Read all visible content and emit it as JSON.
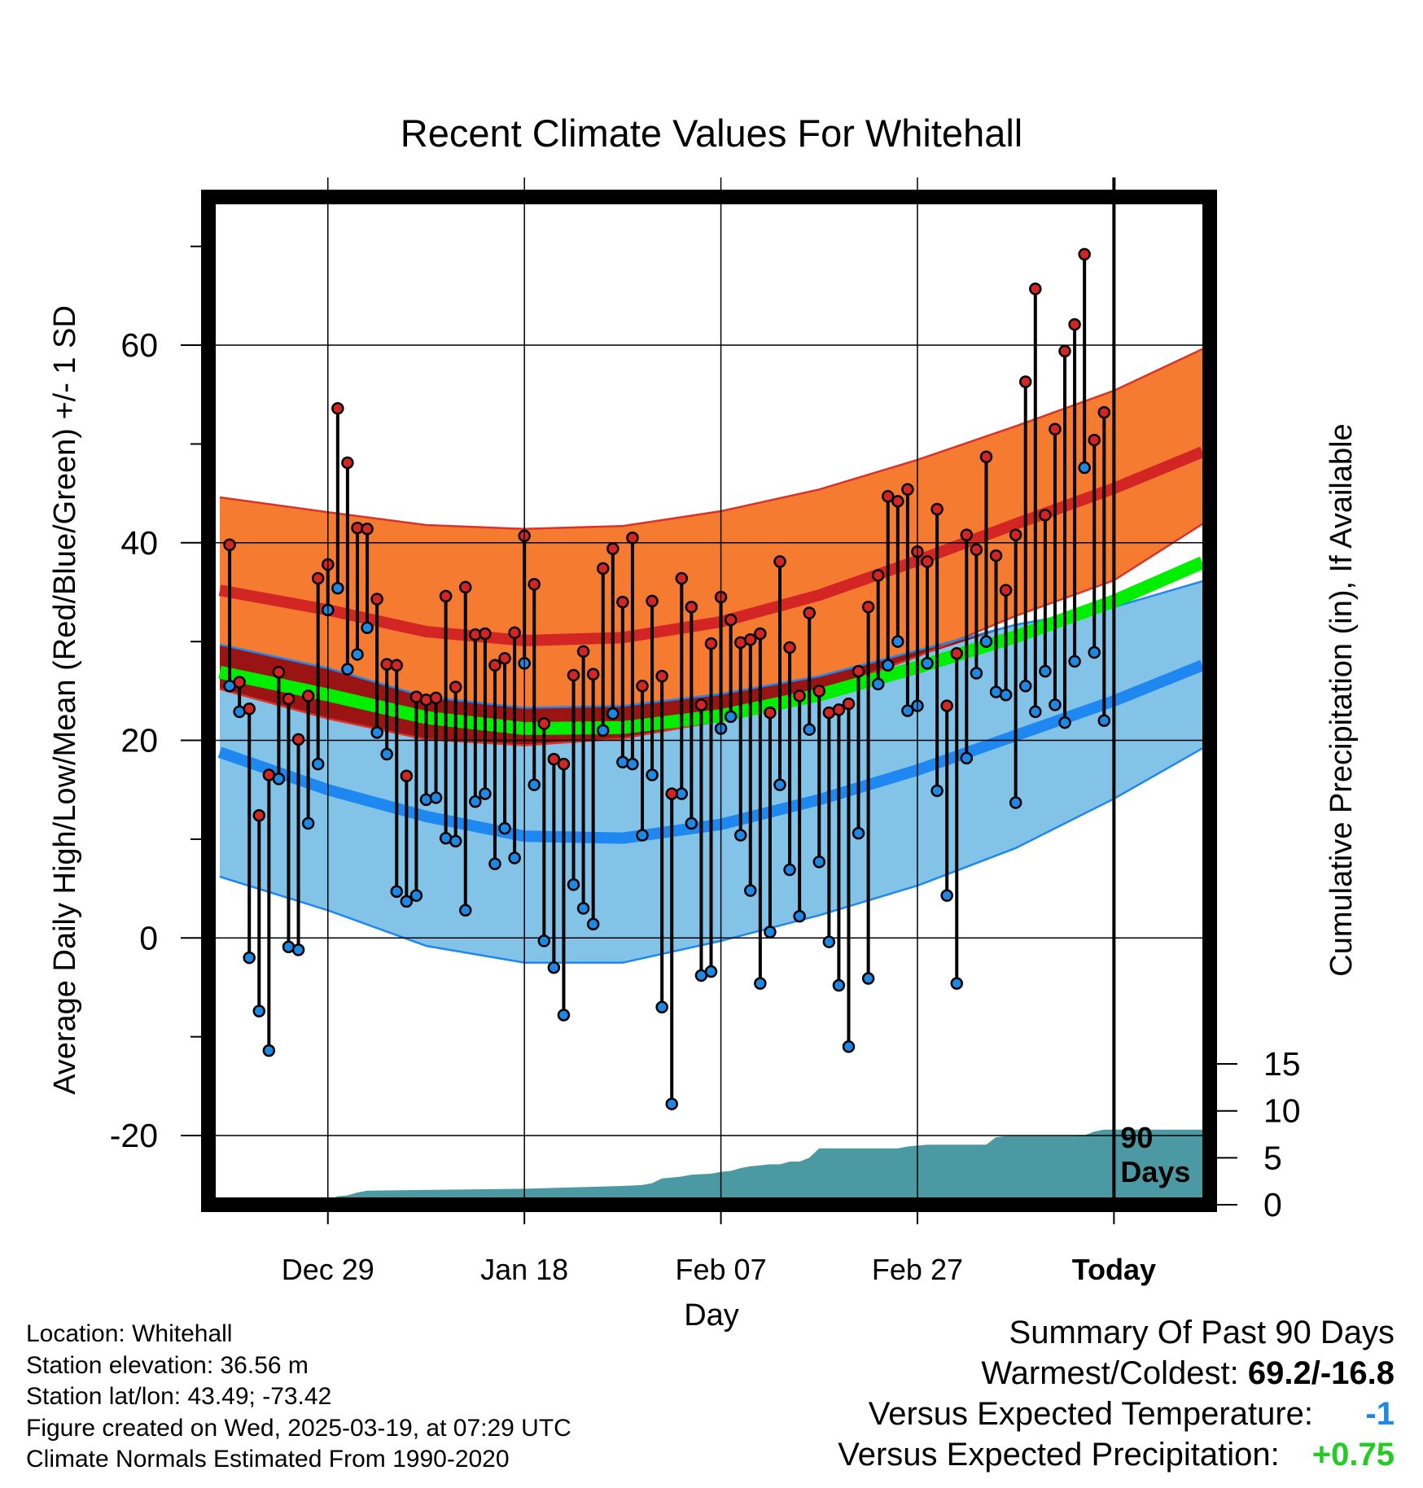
{
  "chart_data": {
    "type": "line",
    "title": "Recent Climate Values For Whitehall",
    "xlabel": "Day",
    "ylabel": "Average Daily High/Low/Mean (Red/Blue/Green) +/- 1 SD",
    "y2label": "Cumulative Precipitation (in), If Available",
    "ylim": [
      -27,
      75
    ],
    "y2lim": [
      0,
      20
    ],
    "yticks": [
      -20,
      0,
      20,
      40,
      60
    ],
    "y2ticks": [
      0,
      5,
      10,
      15
    ],
    "x_tick_labels": [
      "Dec 29",
      "Jan 18",
      "Feb 07",
      "Feb 27",
      "Today"
    ],
    "x_tick_days": [
      10,
      30,
      50,
      70,
      90
    ],
    "xlim": [
      -1,
      99
    ],
    "today_marker_label": [
      "90",
      "Days"
    ],
    "grid": true,
    "colors": {
      "high_band": "#f47b30",
      "high_band_edge": "#d9332a",
      "high_mean": "#d42525",
      "low_band": "#84c3e8",
      "low_band_edge": "#1e88f0",
      "low_mean": "#1e88f0",
      "mean_band": "#9a1414",
      "mean_line": "#00ee00",
      "precip": "#4b9aa3",
      "high_point": "#d42525",
      "low_point": "#1e88e5"
    },
    "normals": {
      "x": [
        -1,
        10,
        20,
        30,
        40,
        50,
        60,
        70,
        80,
        90,
        99
      ],
      "high_mean": [
        35.2,
        33.2,
        31.0,
        30.1,
        30.4,
        32.0,
        34.7,
        38.2,
        41.9,
        45.5,
        49.2
      ],
      "high_upper": [
        44.6,
        43.1,
        41.8,
        41.4,
        41.7,
        43.2,
        45.4,
        48.4,
        51.8,
        55.4,
        59.6
      ],
      "high_lower": [
        25.2,
        22.2,
        20.1,
        19.5,
        20.2,
        22.0,
        24.9,
        28.5,
        32.6,
        36.2,
        41.9
      ],
      "low_mean": [
        18.8,
        15.0,
        12.3,
        10.3,
        10.1,
        11.5,
        14.0,
        17.0,
        20.5,
        24.0,
        27.6
      ],
      "low_upper": [
        29.7,
        27.3,
        24.4,
        23.3,
        23.5,
        24.7,
        26.5,
        29.1,
        31.7,
        33.5,
        36.1
      ],
      "low_lower": [
        6.2,
        2.8,
        -0.8,
        -2.5,
        -2.5,
        -0.3,
        2.3,
        5.3,
        9.1,
        14.1,
        19.2
      ],
      "mean_line": [
        26.9,
        24.6,
        22.3,
        21.2,
        21.3,
        22.5,
        24.6,
        27.4,
        30.5,
        34.1,
        38.0
      ]
    },
    "series": [
      {
        "name": "High",
        "x": [
          0,
          1,
          2,
          3,
          4,
          5,
          6,
          7,
          8,
          9,
          10,
          11,
          12,
          13,
          14,
          15,
          16,
          17,
          18,
          19,
          20,
          21,
          22,
          23,
          24,
          25,
          26,
          27,
          28,
          29,
          30,
          31,
          32,
          33,
          34,
          35,
          36,
          37,
          38,
          39,
          40,
          41,
          42,
          43,
          44,
          45,
          46,
          47,
          48,
          49,
          50,
          51,
          52,
          53,
          54,
          55,
          56,
          57,
          58,
          59,
          60,
          61,
          62,
          63,
          64,
          65,
          66,
          67,
          68,
          69,
          70,
          71,
          72,
          73,
          74,
          75,
          76,
          77,
          78,
          79,
          80,
          81,
          82,
          83,
          84,
          85,
          86,
          87,
          88,
          89
        ],
        "values": [
          39.8,
          25.9,
          23.2,
          12.4,
          16.5,
          26.9,
          24.2,
          20.1,
          24.5,
          36.4,
          37.8,
          53.6,
          48.1,
          41.5,
          41.4,
          34.3,
          27.7,
          27.6,
          16.4,
          24.4,
          24.1,
          24.3,
          34.6,
          25.4,
          35.5,
          30.7,
          30.8,
          27.6,
          28.3,
          30.9,
          40.7,
          35.8,
          21.7,
          18.1,
          17.6,
          26.6,
          29.0,
          26.7,
          37.4,
          39.4,
          34.0,
          40.5,
          25.5,
          34.1,
          26.5,
          14.6,
          36.4,
          33.5,
          23.6,
          29.8,
          34.5,
          32.2,
          29.9,
          30.2,
          30.8,
          22.8,
          38.1,
          29.4,
          24.5,
          32.9,
          25.0,
          22.8,
          23.1,
          23.7,
          27.0,
          33.5,
          36.7,
          44.7,
          44.2,
          45.4,
          39.1,
          38.1,
          43.4,
          23.5,
          28.8,
          40.8,
          39.3,
          48.7,
          38.7,
          35.2,
          40.8,
          56.3,
          65.7,
          42.8,
          51.5,
          59.4,
          62.1,
          69.2,
          50.4,
          53.2
        ]
      },
      {
        "name": "Low",
        "x": [
          0,
          1,
          2,
          3,
          4,
          5,
          6,
          7,
          8,
          9,
          10,
          11,
          12,
          13,
          14,
          15,
          16,
          17,
          18,
          19,
          20,
          21,
          22,
          23,
          24,
          25,
          26,
          27,
          28,
          29,
          30,
          31,
          32,
          33,
          34,
          35,
          36,
          37,
          38,
          39,
          40,
          41,
          42,
          43,
          44,
          45,
          46,
          47,
          48,
          49,
          50,
          51,
          52,
          53,
          54,
          55,
          56,
          57,
          58,
          59,
          60,
          61,
          62,
          63,
          64,
          65,
          66,
          67,
          68,
          69,
          70,
          71,
          72,
          73,
          74,
          75,
          76,
          77,
          78,
          79,
          80,
          81,
          82,
          83,
          84,
          85,
          86,
          87,
          88,
          89
        ],
        "values": [
          25.5,
          22.9,
          -2.0,
          -7.4,
          -11.4,
          16.1,
          -0.9,
          -1.2,
          11.6,
          17.6,
          33.2,
          35.4,
          27.2,
          28.7,
          31.4,
          20.8,
          18.6,
          4.7,
          3.7,
          4.3,
          14.0,
          14.2,
          10.1,
          9.8,
          2.8,
          13.8,
          14.6,
          7.5,
          11.1,
          8.1,
          27.8,
          15.5,
          -0.3,
          -3.0,
          -7.8,
          5.4,
          3.0,
          1.4,
          21.0,
          22.7,
          17.8,
          17.6,
          10.4,
          16.5,
          -7.0,
          -16.8,
          14.6,
          11.6,
          -3.8,
          -3.4,
          21.2,
          22.4,
          10.4,
          4.8,
          -4.6,
          0.6,
          15.5,
          6.9,
          2.2,
          21.1,
          7.7,
          -0.4,
          -4.8,
          -11.0,
          10.6,
          -4.1,
          25.7,
          27.6,
          30.0,
          23.0,
          23.5,
          27.8,
          14.9,
          4.3,
          -4.6,
          18.2,
          26.8,
          30.0,
          24.9,
          24.6,
          13.7,
          25.5,
          22.9,
          27.0,
          23.6,
          21.8,
          28.0,
          47.6,
          28.9,
          22.0
        ]
      }
    ],
    "precip": {
      "x": [
        -1,
        9,
        10,
        11,
        12,
        13,
        14,
        30,
        40,
        41,
        42,
        43,
        44,
        45,
        46,
        47,
        48,
        49,
        50,
        51,
        52,
        53,
        54,
        55,
        56,
        57,
        58,
        59,
        60,
        61,
        62,
        63,
        64,
        65,
        66,
        67,
        68,
        69,
        70,
        71,
        72,
        73,
        74,
        75,
        76,
        77,
        78,
        79,
        80,
        81,
        82,
        83,
        84,
        85,
        86,
        87,
        88,
        89,
        90,
        91,
        99
      ],
      "values": [
        0,
        0,
        0.5,
        0.9,
        1.0,
        1.3,
        1.5,
        1.7,
        2.0,
        2.05,
        2.1,
        2.3,
        2.8,
        2.9,
        3.0,
        3.2,
        3.25,
        3.3,
        3.5,
        3.6,
        3.9,
        4.1,
        4.2,
        4.3,
        4.3,
        4.6,
        4.6,
        5.0,
        6.0,
        6.0,
        6.0,
        6.0,
        6.0,
        6.0,
        6.0,
        6.0,
        6.0,
        6.2,
        6.3,
        6.4,
        6.4,
        6.4,
        6.4,
        6.4,
        6.4,
        6.4,
        7.2,
        7.3,
        7.3,
        7.3,
        7.3,
        7.3,
        7.3,
        7.3,
        7.3,
        7.4,
        7.8,
        8.0,
        8.0,
        8.0,
        8.0
      ]
    }
  },
  "info": {
    "location": "Location: Whitehall",
    "elevation": "Station elevation: 36.56 m",
    "latlon": "Station lat/lon: 43.49; -73.42",
    "created": "Figure created on Wed, 2025-03-19, at 07:29 UTC",
    "normals": "Climate Normals Estimated From 1990-2020"
  },
  "summary": {
    "title": "Summary Of Past 90 Days",
    "warm_cold_label": "Warmest/Coldest:",
    "warm_cold_value": "69.2/-16.8",
    "temp_label": "Versus Expected Temperature:",
    "temp_value": "-1",
    "temp_color": "#1e88e5",
    "precip_label": "Versus Expected Precipitation:",
    "precip_value": "+0.75",
    "precip_color": "#22cc22"
  }
}
